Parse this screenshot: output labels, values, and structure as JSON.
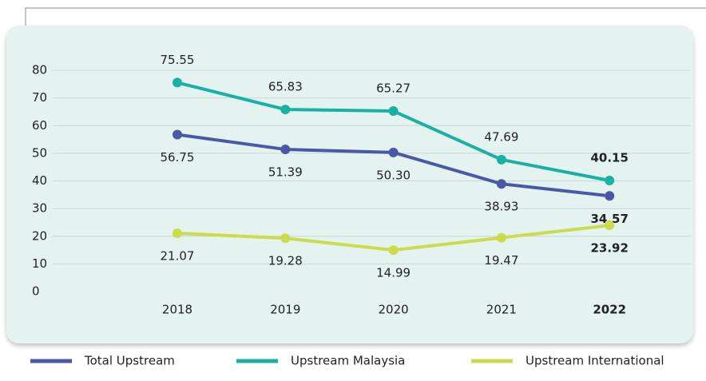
{
  "chart_data": {
    "type": "line",
    "categories": [
      "2018",
      "2019",
      "2020",
      "2021",
      "2022"
    ],
    "series": [
      {
        "name": "Total Upstream",
        "color": "#4a58a8",
        "values": [
          56.75,
          51.39,
          50.3,
          38.93,
          34.57
        ],
        "value_labels": [
          "56.75",
          "51.39",
          "50.30",
          "38.93",
          "34.57"
        ]
      },
      {
        "name": "Upstream Malaysia",
        "color": "#19b0a5",
        "values": [
          75.55,
          65.83,
          65.27,
          47.69,
          40.15
        ],
        "value_labels": [
          "75.55",
          "65.83",
          "65.27",
          "47.69",
          "40.15"
        ]
      },
      {
        "name": "Upstream International",
        "color": "#cbdb4c",
        "values": [
          21.07,
          19.28,
          14.99,
          19.47,
          23.92
        ],
        "value_labels": [
          "21.07",
          "19.28",
          "14.99",
          "19.47",
          "23.92"
        ]
      }
    ],
    "ylim": [
      0,
      80
    ],
    "yticks": [
      0,
      10,
      20,
      30,
      40,
      50,
      60,
      70,
      80
    ],
    "grid": true
  }
}
